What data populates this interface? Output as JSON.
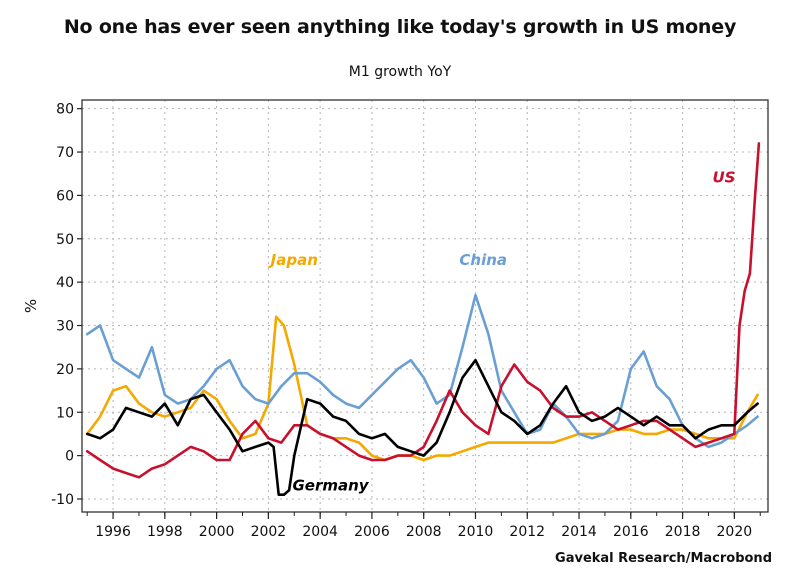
{
  "header": {
    "title": "No one has ever seen anything like today's growth in US money",
    "subtitle": "M1 growth YoY"
  },
  "footer": {
    "source": "Gavekal Research/Macrobond"
  },
  "chart_data": {
    "type": "line",
    "title": "No one has ever seen anything like today's growth in US money",
    "subtitle": "M1 growth YoY",
    "xlabel": "",
    "ylabel": "%",
    "xlim": [
      1994.8,
      2021.3
    ],
    "ylim": [
      -13,
      82
    ],
    "yticks": [
      -10,
      0,
      10,
      20,
      30,
      40,
      50,
      60,
      70,
      80
    ],
    "xticks": [
      1996,
      1998,
      2000,
      2002,
      2004,
      2006,
      2008,
      2010,
      2012,
      2014,
      2016,
      2018,
      2020
    ],
    "grid": true,
    "legend": "none",
    "series": [
      {
        "name": "Japan",
        "color": "#f5a800",
        "label_position": [
          2003.0,
          44
        ],
        "x": [
          1995.0,
          1995.5,
          1996.0,
          1996.5,
          1997.0,
          1997.5,
          1998.0,
          1998.5,
          1999.0,
          1999.5,
          2000.0,
          2000.5,
          2001.0,
          2001.5,
          2002.0,
          2002.3,
          2002.6,
          2003.0,
          2003.5,
          2004.0,
          2004.5,
          2005.0,
          2005.5,
          2006.0,
          2006.5,
          2007.0,
          2007.5,
          2008.0,
          2008.5,
          2009.0,
          2009.5,
          2010.0,
          2010.5,
          2011.0,
          2011.5,
          2012.0,
          2012.5,
          2013.0,
          2013.5,
          2014.0,
          2014.5,
          2015.0,
          2015.5,
          2016.0,
          2016.5,
          2017.0,
          2017.5,
          2018.0,
          2018.5,
          2019.0,
          2019.5,
          2020.0,
          2020.5,
          2020.9
        ],
        "values": [
          5,
          9,
          15,
          16,
          12,
          10,
          9,
          10,
          11,
          15,
          13,
          8,
          4,
          5,
          12,
          32,
          30,
          21,
          7,
          5,
          4,
          4,
          3,
          0,
          -1,
          0,
          0,
          -1,
          0,
          0,
          1,
          2,
          3,
          3,
          3,
          3,
          3,
          3,
          4,
          5,
          5,
          5,
          6,
          6,
          5,
          5,
          6,
          6,
          5,
          4,
          4,
          4,
          10,
          14
        ]
      },
      {
        "name": "China",
        "color": "#6a9fd4",
        "label_position": [
          2010.3,
          44
        ],
        "x": [
          1995.0,
          1995.5,
          1996.0,
          1996.5,
          1997.0,
          1997.5,
          1998.0,
          1998.5,
          1999.0,
          1999.5,
          2000.0,
          2000.5,
          2001.0,
          2001.5,
          2002.0,
          2002.5,
          2003.0,
          2003.5,
          2004.0,
          2004.5,
          2005.0,
          2005.5,
          2006.0,
          2006.5,
          2007.0,
          2007.5,
          2008.0,
          2008.5,
          2009.0,
          2009.5,
          2010.0,
          2010.5,
          2011.0,
          2011.5,
          2012.0,
          2012.5,
          2013.0,
          2013.5,
          2014.0,
          2014.5,
          2015.0,
          2015.5,
          2016.0,
          2016.5,
          2017.0,
          2017.5,
          2018.0,
          2018.5,
          2019.0,
          2019.5,
          2020.0,
          2020.5,
          2020.9
        ],
        "values": [
          28,
          30,
          22,
          20,
          18,
          25,
          14,
          12,
          13,
          16,
          20,
          22,
          16,
          13,
          12,
          16,
          19,
          19,
          17,
          14,
          12,
          11,
          14,
          17,
          20,
          22,
          18,
          12,
          14,
          25,
          37,
          28,
          15,
          10,
          5,
          6,
          12,
          9,
          5,
          4,
          5,
          8,
          20,
          24,
          16,
          13,
          7,
          4,
          2,
          3,
          5,
          7,
          9
        ]
      },
      {
        "name": "US",
        "color": "#c8102e",
        "label_position": [
          2019.6,
          63
        ],
        "x": [
          1995.0,
          1995.5,
          1996.0,
          1996.5,
          1997.0,
          1997.5,
          1998.0,
          1998.5,
          1999.0,
          1999.5,
          2000.0,
          2000.5,
          2001.0,
          2001.5,
          2002.0,
          2002.5,
          2003.0,
          2003.5,
          2004.0,
          2004.5,
          2005.0,
          2005.5,
          2006.0,
          2006.5,
          2007.0,
          2007.5,
          2008.0,
          2008.5,
          2009.0,
          2009.5,
          2010.0,
          2010.5,
          2011.0,
          2011.5,
          2012.0,
          2012.5,
          2013.0,
          2013.5,
          2014.0,
          2014.5,
          2015.0,
          2015.5,
          2016.0,
          2016.5,
          2017.0,
          2017.5,
          2018.0,
          2018.5,
          2019.0,
          2019.5,
          2020.0,
          2020.2,
          2020.4,
          2020.6,
          2020.8,
          2020.95
        ],
        "values": [
          1,
          -1,
          -3,
          -4,
          -5,
          -3,
          -2,
          0,
          2,
          1,
          -1,
          -1,
          5,
          8,
          4,
          3,
          7,
          7,
          5,
          4,
          2,
          0,
          -1,
          -1,
          0,
          0,
          2,
          8,
          15,
          10,
          7,
          5,
          16,
          21,
          17,
          15,
          11,
          9,
          9,
          10,
          8,
          6,
          7,
          8,
          8,
          6,
          4,
          2,
          3,
          4,
          5,
          30,
          38,
          42,
          60,
          72
        ]
      },
      {
        "name": "Germany",
        "color": "#000000",
        "label_position": [
          2004.4,
          -8
        ],
        "x": [
          1995.0,
          1995.5,
          1996.0,
          1996.5,
          1997.0,
          1997.5,
          1998.0,
          1998.5,
          1999.0,
          1999.5,
          2000.0,
          2000.5,
          2001.0,
          2001.5,
          2002.0,
          2002.2,
          2002.4,
          2002.6,
          2002.8,
          2003.0,
          2003.5,
          2004.0,
          2004.5,
          2005.0,
          2005.5,
          2006.0,
          2006.5,
          2007.0,
          2007.5,
          2008.0,
          2008.5,
          2009.0,
          2009.5,
          2010.0,
          2010.5,
          2011.0,
          2011.5,
          2012.0,
          2012.5,
          2013.0,
          2013.5,
          2014.0,
          2014.5,
          2015.0,
          2015.5,
          2016.0,
          2016.5,
          2017.0,
          2017.5,
          2018.0,
          2018.5,
          2019.0,
          2019.5,
          2020.0,
          2020.5,
          2020.9
        ],
        "values": [
          5,
          4,
          6,
          11,
          10,
          9,
          12,
          7,
          13,
          14,
          10,
          6,
          1,
          2,
          3,
          2,
          -9,
          -9,
          -8,
          0,
          13,
          12,
          9,
          8,
          5,
          4,
          5,
          2,
          1,
          0,
          3,
          10,
          18,
          22,
          16,
          10,
          8,
          5,
          7,
          12,
          16,
          10,
          8,
          9,
          11,
          9,
          7,
          9,
          7,
          7,
          4,
          6,
          7,
          7,
          10,
          12
        ]
      }
    ]
  }
}
